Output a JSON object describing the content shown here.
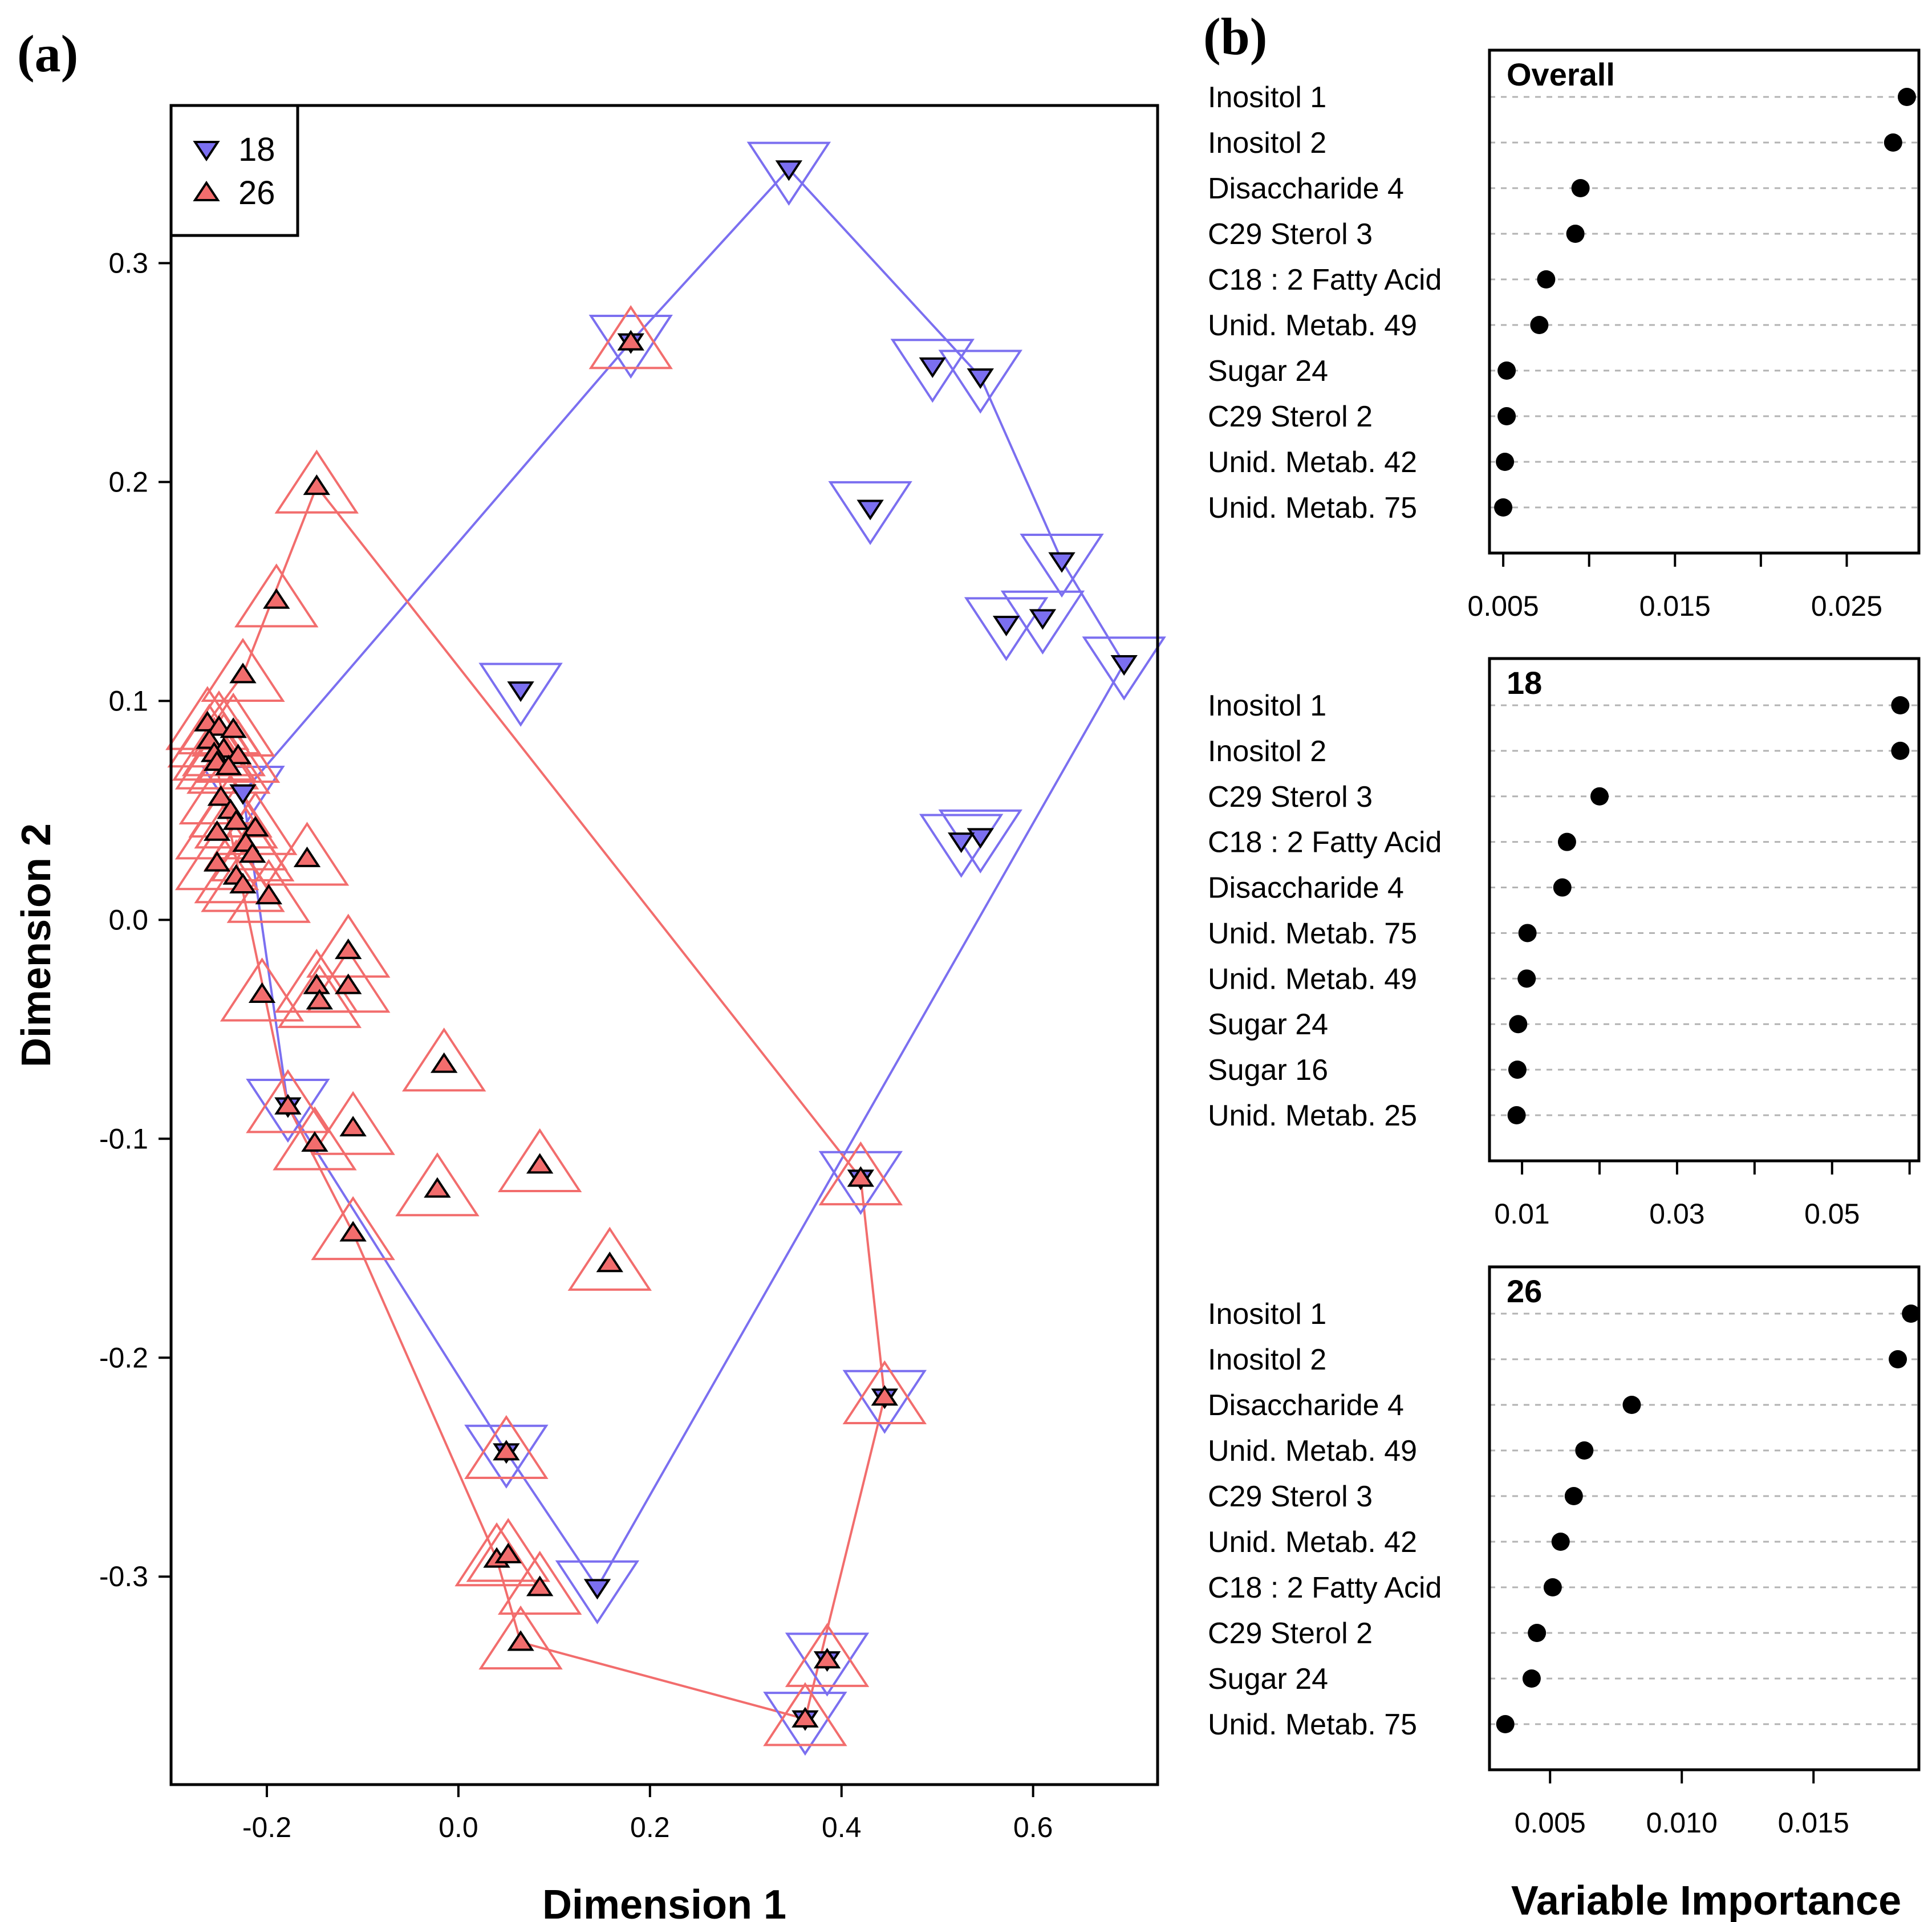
{
  "colors": {
    "g18": "#7b6ff0",
    "g26": "#f26d6d",
    "hull18": "#7b6ff0",
    "hull26": "#f26d6d"
  },
  "panel_labels": {
    "a": "(a)",
    "b": "(b)"
  },
  "chart_data": [
    {
      "type": "scatter",
      "title": "",
      "xlabel": "Dimension 1",
      "ylabel": "Dimension 2",
      "xlim": [
        -0.3,
        0.73
      ],
      "ylim": [
        -0.395,
        0.372
      ],
      "xticks": [
        -0.2,
        0.0,
        0.2,
        0.4,
        0.6
      ],
      "xtick_labels": [
        "-0.2",
        "0.0",
        "0.2",
        "0.4",
        "0.6"
      ],
      "yticks": [
        -0.3,
        -0.2,
        -0.1,
        0.0,
        0.1,
        0.2,
        0.3
      ],
      "ytick_labels": [
        "-0.3",
        "-0.2",
        "-0.1",
        "0.0",
        "0.1",
        "0.2",
        "0.3"
      ],
      "legend": [
        {
          "name": "18",
          "symbol": "down-triangle"
        },
        {
          "name": "26",
          "symbol": "up-triangle"
        }
      ],
      "legend_position": "top-left",
      "series": [
        {
          "name": "18",
          "symbol": "down-triangle",
          "points": [
            [
              0.345,
              0.343
            ],
            [
              0.18,
              0.264
            ],
            [
              0.495,
              0.253
            ],
            [
              0.545,
              0.248
            ],
            [
              0.43,
              0.188
            ],
            [
              0.63,
              0.164
            ],
            [
              0.61,
              0.138
            ],
            [
              0.572,
              0.135
            ],
            [
              0.695,
              0.117
            ],
            [
              0.065,
              0.105
            ],
            [
              0.545,
              0.038
            ],
            [
              0.525,
              0.036
            ],
            [
              -0.225,
              0.058
            ],
            [
              -0.178,
              -0.085
            ],
            [
              0.05,
              -0.243
            ],
            [
              0.145,
              -0.305
            ],
            [
              0.42,
              -0.118
            ],
            [
              0.445,
              -0.218
            ],
            [
              0.385,
              -0.338
            ],
            [
              0.362,
              -0.365
            ]
          ],
          "hull": [
            [
              0.345,
              0.343
            ],
            [
              0.545,
              0.248
            ],
            [
              0.63,
              0.164
            ],
            [
              0.695,
              0.117
            ],
            [
              0.145,
              -0.305
            ],
            [
              0.05,
              -0.243
            ],
            [
              -0.178,
              -0.085
            ],
            [
              -0.225,
              0.058
            ],
            [
              0.18,
              0.264
            ]
          ]
        },
        {
          "name": "26",
          "symbol": "up-triangle",
          "points": [
            [
              0.18,
              0.264
            ],
            [
              -0.148,
              0.198
            ],
            [
              -0.19,
              0.146
            ],
            [
              -0.225,
              0.112
            ],
            [
              -0.262,
              0.09
            ],
            [
              -0.25,
              0.088
            ],
            [
              -0.235,
              0.087
            ],
            [
              -0.26,
              0.082
            ],
            [
              -0.245,
              0.078
            ],
            [
              -0.255,
              0.076
            ],
            [
              -0.23,
              0.075
            ],
            [
              -0.252,
              0.072
            ],
            [
              -0.24,
              0.07
            ],
            [
              -0.248,
              0.056
            ],
            [
              -0.238,
              0.05
            ],
            [
              -0.232,
              0.045
            ],
            [
              -0.252,
              0.04
            ],
            [
              -0.212,
              0.042
            ],
            [
              -0.222,
              0.035
            ],
            [
              -0.215,
              0.03
            ],
            [
              -0.252,
              0.026
            ],
            [
              -0.158,
              0.028
            ],
            [
              -0.232,
              0.02
            ],
            [
              -0.225,
              0.016
            ],
            [
              -0.198,
              0.011
            ],
            [
              -0.115,
              -0.014
            ],
            [
              -0.148,
              -0.03
            ],
            [
              -0.115,
              -0.03
            ],
            [
              -0.205,
              -0.034
            ],
            [
              -0.145,
              -0.037
            ],
            [
              -0.015,
              -0.066
            ],
            [
              -0.178,
              -0.085
            ],
            [
              -0.11,
              -0.095
            ],
            [
              -0.15,
              -0.102
            ],
            [
              0.085,
              -0.112
            ],
            [
              -0.022,
              -0.123
            ],
            [
              -0.11,
              -0.143
            ],
            [
              0.158,
              -0.157
            ],
            [
              0.42,
              -0.118
            ],
            [
              0.445,
              -0.218
            ],
            [
              0.05,
              -0.243
            ],
            [
              0.04,
              -0.292
            ],
            [
              0.052,
              -0.29
            ],
            [
              0.085,
              -0.305
            ],
            [
              0.065,
              -0.33
            ],
            [
              0.385,
              -0.338
            ],
            [
              0.362,
              -0.365
            ]
          ],
          "hull": [
            [
              -0.148,
              0.198
            ],
            [
              0.42,
              -0.118
            ],
            [
              0.445,
              -0.218
            ],
            [
              0.362,
              -0.365
            ],
            [
              0.065,
              -0.33
            ],
            [
              0.04,
              -0.292
            ],
            [
              -0.11,
              -0.143
            ],
            [
              -0.178,
              -0.085
            ],
            [
              -0.262,
              0.09
            ],
            [
              -0.225,
              0.112
            ]
          ]
        }
      ]
    },
    {
      "type": "dotplot",
      "title": "Overall",
      "xlim": [
        0.0042,
        0.0292
      ],
      "xticks": [
        0.005,
        0.01,
        0.015,
        0.02,
        0.025
      ],
      "xtick_labels": [
        "0.005",
        "",
        "0.015",
        "",
        "0.025"
      ],
      "labels": [
        "Inositol 1",
        "Inositol 2",
        "Disaccharide 4",
        "C29 Sterol 3",
        "C18 : 2 Fatty Acid",
        "Unid. Metab. 49",
        "Sugar 24",
        "C29 Sterol 2",
        "Unid. Metab. 42",
        "Unid. Metab. 75"
      ],
      "values": [
        0.0285,
        0.0277,
        0.0095,
        0.0092,
        0.0075,
        0.0071,
        0.0052,
        0.0052,
        0.0051,
        0.005
      ]
    },
    {
      "type": "dotplot",
      "title": "18",
      "xlim": [
        0.0058,
        0.0612
      ],
      "xticks": [
        0.01,
        0.02,
        0.03,
        0.04,
        0.05,
        0.06
      ],
      "xtick_labels": [
        "0.01",
        "",
        "0.03",
        "",
        "0.05",
        ""
      ],
      "labels": [
        "Inositol 1",
        "Inositol 2",
        "C29 Sterol 3",
        "C18 : 2 Fatty Acid",
        "Disaccharide 4",
        "Unid. Metab. 75",
        "Unid. Metab. 49",
        "Sugar 24",
        "Sugar 16",
        "Unid. Metab. 25"
      ],
      "values": [
        0.0588,
        0.0588,
        0.02,
        0.0158,
        0.0152,
        0.0107,
        0.0106,
        0.0095,
        0.0094,
        0.0093
      ]
    },
    {
      "type": "dotplot",
      "title": "26",
      "xlim": [
        0.0027,
        0.019
      ],
      "xticks": [
        0.005,
        0.01,
        0.015
      ],
      "xtick_labels": [
        "0.005",
        "0.010",
        "0.015"
      ],
      "labels": [
        "Inositol 1",
        "Inositol 2",
        "Disaccharide 4",
        "Unid. Metab. 49",
        "C29 Sterol 3",
        "Unid. Metab. 42",
        "C18 : 2 Fatty Acid",
        "C29 Sterol 2",
        "Sugar 24",
        "Unid. Metab. 75"
      ],
      "values": [
        0.0187,
        0.0182,
        0.0081,
        0.0063,
        0.0059,
        0.0054,
        0.0051,
        0.0045,
        0.0043,
        0.0033
      ]
    }
  ],
  "b_xlabel": "Variable Importance"
}
